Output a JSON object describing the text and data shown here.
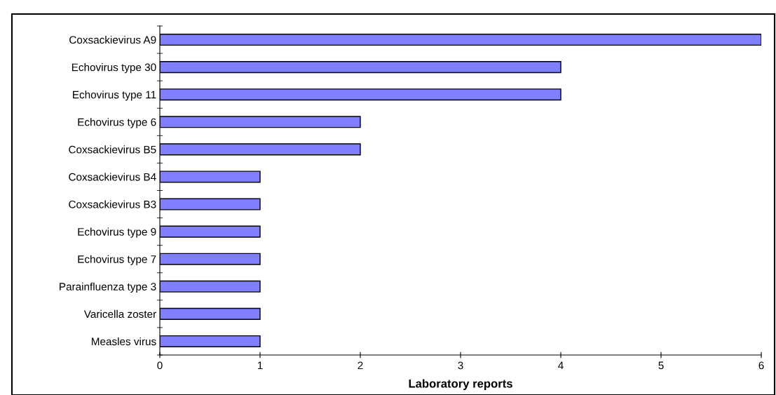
{
  "chart_data": {
    "type": "bar",
    "orientation": "horizontal",
    "xlabel": "Laboratory reports",
    "categories": [
      "Coxsackievirus A9",
      "Echovirus type 30",
      "Echovirus type 11",
      "Echovirus type 6",
      "Coxsackievirus B5",
      "Coxsackievirus B4",
      "Coxsackievirus B3",
      "Echovirus type 9",
      "Echovirus type 7",
      "Parainfluenza type 3",
      "Varicella zoster",
      "Measles virus"
    ],
    "values": [
      6,
      4,
      4,
      2,
      2,
      1,
      1,
      1,
      1,
      1,
      1,
      1
    ],
    "color": "#7f7fff",
    "xlim": [
      0,
      6
    ],
    "xticks": [
      0,
      1,
      2,
      3,
      4,
      5,
      6
    ],
    "grid": false,
    "legend": false
  }
}
